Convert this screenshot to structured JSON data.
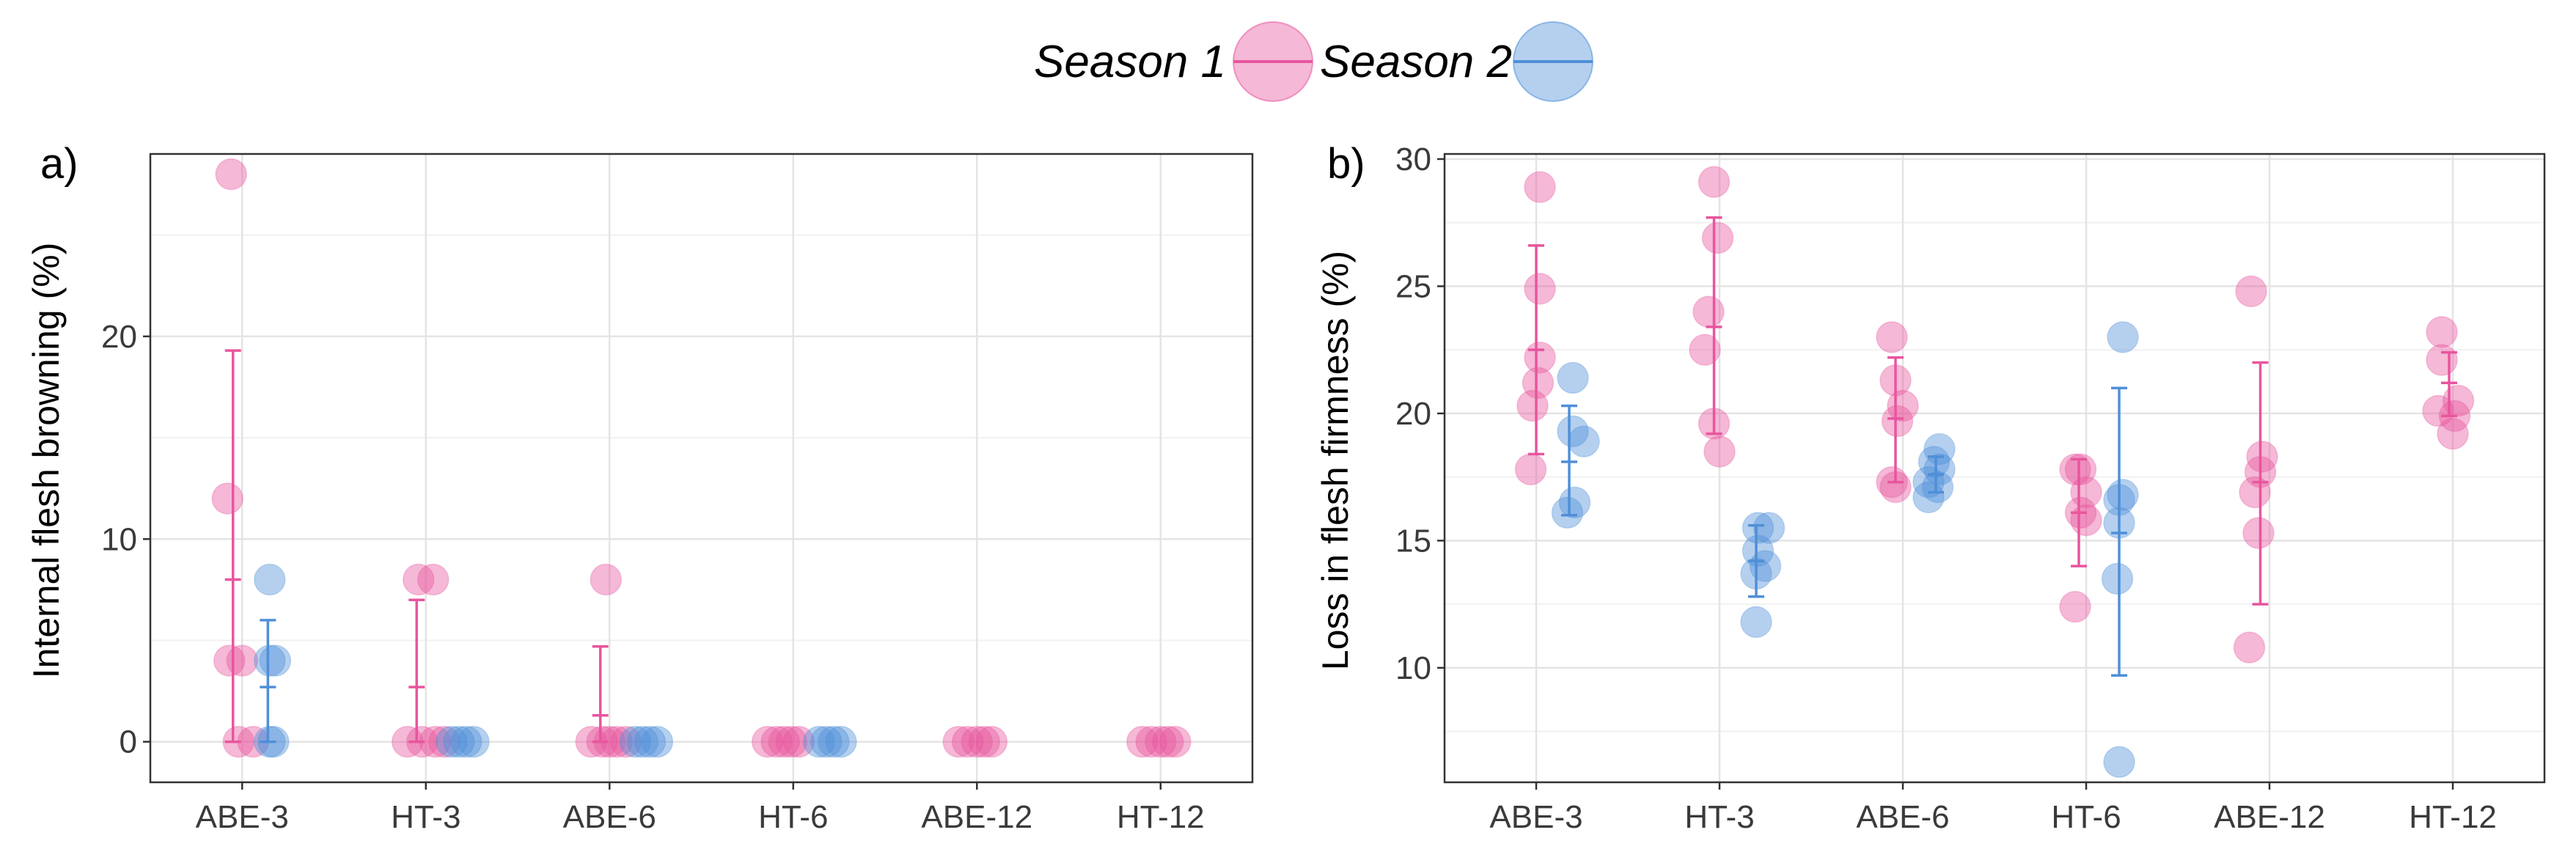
{
  "legend": {
    "items": [
      {
        "label": "Season 1",
        "color": "#e8559e"
      },
      {
        "label": "Season 2",
        "color": "#4f8fd8"
      }
    ]
  },
  "chart_data": [
    {
      "type": "scatter",
      "panel_label": "a)",
      "ylabel": "Internal flesh browning (%)",
      "xlabel": "",
      "categories": [
        "ABE-3",
        "HT-3",
        "ABE-6",
        "HT-6",
        "ABE-12",
        "HT-12"
      ],
      "ylim": [
        -2,
        29
      ],
      "yticks": [
        0,
        10,
        20
      ],
      "grid": true,
      "series": [
        {
          "name": "Season 1",
          "points": [
            {
              "cat": 0,
              "jitter": -0.06,
              "y": 28
            },
            {
              "cat": 0,
              "jitter": -0.08,
              "y": 12
            },
            {
              "cat": 0,
              "jitter": -0.07,
              "y": 4
            },
            {
              "cat": 0,
              "jitter": 0.0,
              "y": 4
            },
            {
              "cat": 0,
              "jitter": -0.02,
              "y": 0
            },
            {
              "cat": 0,
              "jitter": 0.06,
              "y": 0
            },
            {
              "cat": 1,
              "jitter": -0.04,
              "y": 8
            },
            {
              "cat": 1,
              "jitter": 0.04,
              "y": 8
            },
            {
              "cat": 1,
              "jitter": -0.1,
              "y": 0
            },
            {
              "cat": 1,
              "jitter": -0.02,
              "y": 0
            },
            {
              "cat": 1,
              "jitter": 0.05,
              "y": 0
            },
            {
              "cat": 1,
              "jitter": 0.1,
              "y": 0
            },
            {
              "cat": 2,
              "jitter": -0.02,
              "y": 8
            },
            {
              "cat": 2,
              "jitter": -0.1,
              "y": 0
            },
            {
              "cat": 2,
              "jitter": -0.04,
              "y": 0
            },
            {
              "cat": 2,
              "jitter": 0.0,
              "y": 0
            },
            {
              "cat": 2,
              "jitter": 0.04,
              "y": 0
            },
            {
              "cat": 2,
              "jitter": 0.09,
              "y": 0
            },
            {
              "cat": 3,
              "jitter": -0.14,
              "y": 0
            },
            {
              "cat": 3,
              "jitter": -0.09,
              "y": 0
            },
            {
              "cat": 3,
              "jitter": -0.05,
              "y": 0
            },
            {
              "cat": 3,
              "jitter": -0.01,
              "y": 0
            },
            {
              "cat": 3,
              "jitter": 0.03,
              "y": 0
            },
            {
              "cat": 4,
              "jitter": -0.1,
              "y": 0
            },
            {
              "cat": 4,
              "jitter": -0.05,
              "y": 0
            },
            {
              "cat": 4,
              "jitter": 0.0,
              "y": 0
            },
            {
              "cat": 4,
              "jitter": 0.04,
              "y": 0
            },
            {
              "cat": 4,
              "jitter": 0.08,
              "y": 0
            },
            {
              "cat": 5,
              "jitter": -0.1,
              "y": 0
            },
            {
              "cat": 5,
              "jitter": -0.05,
              "y": 0
            },
            {
              "cat": 5,
              "jitter": 0.0,
              "y": 0
            },
            {
              "cat": 5,
              "jitter": 0.04,
              "y": 0
            },
            {
              "cat": 5,
              "jitter": 0.08,
              "y": 0
            }
          ],
          "error_bars": [
            {
              "cat": 0,
              "offset": -0.05,
              "mean": 8,
              "low": 0,
              "high": 19.3
            },
            {
              "cat": 1,
              "offset": -0.05,
              "mean": 2.7,
              "low": 0,
              "high": 7.0
            },
            {
              "cat": 2,
              "offset": -0.05,
              "mean": 1.3,
              "low": 0,
              "high": 4.7
            }
          ]
        },
        {
          "name": "Season 2",
          "points": [
            {
              "cat": 0,
              "jitter": 0.15,
              "y": 8
            },
            {
              "cat": 0,
              "jitter": 0.15,
              "y": 4
            },
            {
              "cat": 0,
              "jitter": 0.18,
              "y": 4
            },
            {
              "cat": 0,
              "jitter": 0.15,
              "y": 0
            },
            {
              "cat": 0,
              "jitter": 0.17,
              "y": 0
            },
            {
              "cat": 1,
              "jitter": 0.14,
              "y": 0
            },
            {
              "cat": 1,
              "jitter": 0.18,
              "y": 0
            },
            {
              "cat": 1,
              "jitter": 0.22,
              "y": 0
            },
            {
              "cat": 1,
              "jitter": 0.26,
              "y": 0
            },
            {
              "cat": 2,
              "jitter": 0.14,
              "y": 0
            },
            {
              "cat": 2,
              "jitter": 0.18,
              "y": 0
            },
            {
              "cat": 2,
              "jitter": 0.22,
              "y": 0
            },
            {
              "cat": 2,
              "jitter": 0.26,
              "y": 0
            },
            {
              "cat": 3,
              "jitter": 0.14,
              "y": 0
            },
            {
              "cat": 3,
              "jitter": 0.18,
              "y": 0
            },
            {
              "cat": 3,
              "jitter": 0.22,
              "y": 0
            },
            {
              "cat": 3,
              "jitter": 0.26,
              "y": 0
            }
          ],
          "error_bars": [
            {
              "cat": 0,
              "offset": 0.14,
              "mean": 2.7,
              "low": 0,
              "high": 6.0
            }
          ]
        }
      ]
    },
    {
      "type": "scatter",
      "panel_label": "b)",
      "ylabel": "Loss in flesh firmness (%)",
      "xlabel": "",
      "categories": [
        "ABE-3",
        "HT-3",
        "ABE-6",
        "HT-6",
        "ABE-12",
        "HT-12"
      ],
      "ylim": [
        5.5,
        30.2
      ],
      "yticks": [
        10,
        15,
        20,
        25,
        30
      ],
      "grid": true,
      "series": [
        {
          "name": "Season 1",
          "points": [
            {
              "cat": 0,
              "jitter": 0.02,
              "y": 28.9
            },
            {
              "cat": 0,
              "jitter": 0.02,
              "y": 24.9
            },
            {
              "cat": 0,
              "jitter": 0.02,
              "y": 22.2
            },
            {
              "cat": 0,
              "jitter": 0.01,
              "y": 21.2
            },
            {
              "cat": 0,
              "jitter": -0.02,
              "y": 20.3
            },
            {
              "cat": 0,
              "jitter": -0.03,
              "y": 17.8
            },
            {
              "cat": 1,
              "jitter": -0.03,
              "y": 29.1
            },
            {
              "cat": 1,
              "jitter": -0.01,
              "y": 26.9
            },
            {
              "cat": 1,
              "jitter": -0.06,
              "y": 24.0
            },
            {
              "cat": 1,
              "jitter": -0.08,
              "y": 22.5
            },
            {
              "cat": 1,
              "jitter": -0.03,
              "y": 19.6
            },
            {
              "cat": 1,
              "jitter": 0.0,
              "y": 18.5
            },
            {
              "cat": 2,
              "jitter": -0.06,
              "y": 23.0
            },
            {
              "cat": 2,
              "jitter": -0.04,
              "y": 21.3
            },
            {
              "cat": 2,
              "jitter": 0.0,
              "y": 20.3
            },
            {
              "cat": 2,
              "jitter": -0.03,
              "y": 19.7
            },
            {
              "cat": 2,
              "jitter": -0.06,
              "y": 17.3
            },
            {
              "cat": 2,
              "jitter": -0.04,
              "y": 17.1
            },
            {
              "cat": 3,
              "jitter": -0.03,
              "y": 17.8
            },
            {
              "cat": 3,
              "jitter": -0.06,
              "y": 17.8
            },
            {
              "cat": 3,
              "jitter": 0.0,
              "y": 16.9
            },
            {
              "cat": 3,
              "jitter": -0.03,
              "y": 16.1
            },
            {
              "cat": 3,
              "jitter": 0.0,
              "y": 15.8
            },
            {
              "cat": 3,
              "jitter": -0.06,
              "y": 12.4
            },
            {
              "cat": 4,
              "jitter": -0.1,
              "y": 24.8
            },
            {
              "cat": 4,
              "jitter": -0.04,
              "y": 18.3
            },
            {
              "cat": 4,
              "jitter": -0.05,
              "y": 17.7
            },
            {
              "cat": 4,
              "jitter": -0.08,
              "y": 16.9
            },
            {
              "cat": 4,
              "jitter": -0.06,
              "y": 15.3
            },
            {
              "cat": 4,
              "jitter": -0.11,
              "y": 10.8
            },
            {
              "cat": 5,
              "jitter": -0.06,
              "y": 23.2
            },
            {
              "cat": 5,
              "jitter": -0.06,
              "y": 22.1
            },
            {
              "cat": 5,
              "jitter": 0.03,
              "y": 20.5
            },
            {
              "cat": 5,
              "jitter": -0.08,
              "y": 20.1
            },
            {
              "cat": 5,
              "jitter": 0.01,
              "y": 19.9
            },
            {
              "cat": 5,
              "jitter": 0.0,
              "y": 19.2
            }
          ],
          "error_bars": [
            {
              "cat": 0,
              "offset": 0.0,
              "mean": 22.5,
              "low": 18.4,
              "high": 26.6
            },
            {
              "cat": 1,
              "offset": -0.03,
              "mean": 23.4,
              "low": 19.2,
              "high": 27.7
            },
            {
              "cat": 2,
              "offset": -0.04,
              "mean": 19.8,
              "low": 17.3,
              "high": 22.2
            },
            {
              "cat": 3,
              "offset": -0.04,
              "mean": 16.1,
              "low": 14.0,
              "high": 18.2
            },
            {
              "cat": 4,
              "offset": -0.05,
              "mean": 17.3,
              "low": 12.5,
              "high": 22.0
            },
            {
              "cat": 5,
              "offset": -0.02,
              "mean": 21.2,
              "low": 19.9,
              "high": 22.4
            }
          ]
        },
        {
          "name": "Season 2",
          "points": [
            {
              "cat": 0,
              "jitter": 0.2,
              "y": 21.4
            },
            {
              "cat": 0,
              "jitter": 0.2,
              "y": 19.3
            },
            {
              "cat": 0,
              "jitter": 0.26,
              "y": 18.9
            },
            {
              "cat": 0,
              "jitter": 0.21,
              "y": 16.5
            },
            {
              "cat": 0,
              "jitter": 0.17,
              "y": 16.1
            },
            {
              "cat": 1,
              "jitter": 0.21,
              "y": 15.5
            },
            {
              "cat": 1,
              "jitter": 0.27,
              "y": 15.5
            },
            {
              "cat": 1,
              "jitter": 0.21,
              "y": 14.6
            },
            {
              "cat": 1,
              "jitter": 0.25,
              "y": 14.0
            },
            {
              "cat": 1,
              "jitter": 0.2,
              "y": 13.7
            },
            {
              "cat": 1,
              "jitter": 0.2,
              "y": 11.8
            },
            {
              "cat": 2,
              "jitter": 0.2,
              "y": 18.6
            },
            {
              "cat": 2,
              "jitter": 0.17,
              "y": 18.1
            },
            {
              "cat": 2,
              "jitter": 0.2,
              "y": 17.8
            },
            {
              "cat": 2,
              "jitter": 0.14,
              "y": 17.3
            },
            {
              "cat": 2,
              "jitter": 0.19,
              "y": 17.1
            },
            {
              "cat": 2,
              "jitter": 0.14,
              "y": 16.7
            },
            {
              "cat": 3,
              "jitter": 0.2,
              "y": 23.0
            },
            {
              "cat": 3,
              "jitter": 0.2,
              "y": 16.8
            },
            {
              "cat": 3,
              "jitter": 0.18,
              "y": 16.6
            },
            {
              "cat": 3,
              "jitter": 0.18,
              "y": 15.7
            },
            {
              "cat": 3,
              "jitter": 0.17,
              "y": 13.5
            },
            {
              "cat": 3,
              "jitter": 0.18,
              "y": 6.3
            }
          ],
          "error_bars": [
            {
              "cat": 0,
              "offset": 0.18,
              "mean": 18.1,
              "low": 16.0,
              "high": 20.3
            },
            {
              "cat": 1,
              "offset": 0.2,
              "mean": 14.2,
              "low": 12.8,
              "high": 15.6
            },
            {
              "cat": 2,
              "offset": 0.18,
              "mean": 17.6,
              "low": 16.9,
              "high": 18.3
            },
            {
              "cat": 3,
              "offset": 0.18,
              "mean": 15.3,
              "low": 9.7,
              "high": 21.0
            }
          ]
        }
      ]
    }
  ]
}
